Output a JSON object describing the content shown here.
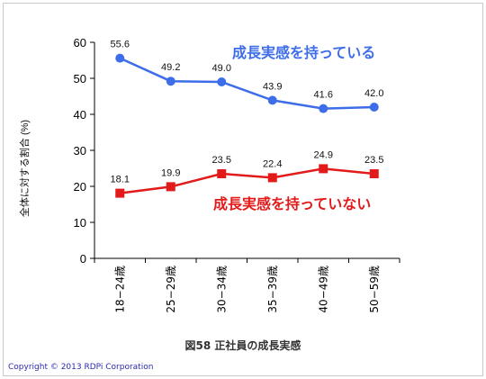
{
  "chart_data": {
    "type": "line",
    "categories": [
      "18−24歳",
      "25−29歳",
      "30−34歳",
      "35−39歳",
      "40−49歳",
      "50−59歳"
    ],
    "ylabel": "全体に対する割合 (%)",
    "ylim": [
      0,
      60
    ],
    "yticks": [
      0,
      10,
      20,
      30,
      40,
      50,
      60
    ],
    "grid": false,
    "series": [
      {
        "name": "成長実感を持っている",
        "color": "#3d6de8",
        "marker": "circle",
        "values": [
          55.6,
          49.2,
          49.0,
          43.9,
          41.6,
          42.0
        ],
        "value_labels": [
          "55.6",
          "49.2",
          "49.0",
          "43.9",
          "41.6",
          "42.0"
        ]
      },
      {
        "name": "成長実感を持っていない",
        "color": "#e21a1a",
        "marker": "square",
        "values": [
          18.1,
          19.9,
          23.5,
          22.4,
          24.9,
          23.5
        ],
        "value_labels": [
          "18.1",
          "19.9",
          "23.5",
          "22.4",
          "24.9",
          "23.5"
        ]
      }
    ]
  },
  "caption": "図58 正社員の成長実感",
  "copyright": "Copyright © 2013  RDPi Corporation"
}
